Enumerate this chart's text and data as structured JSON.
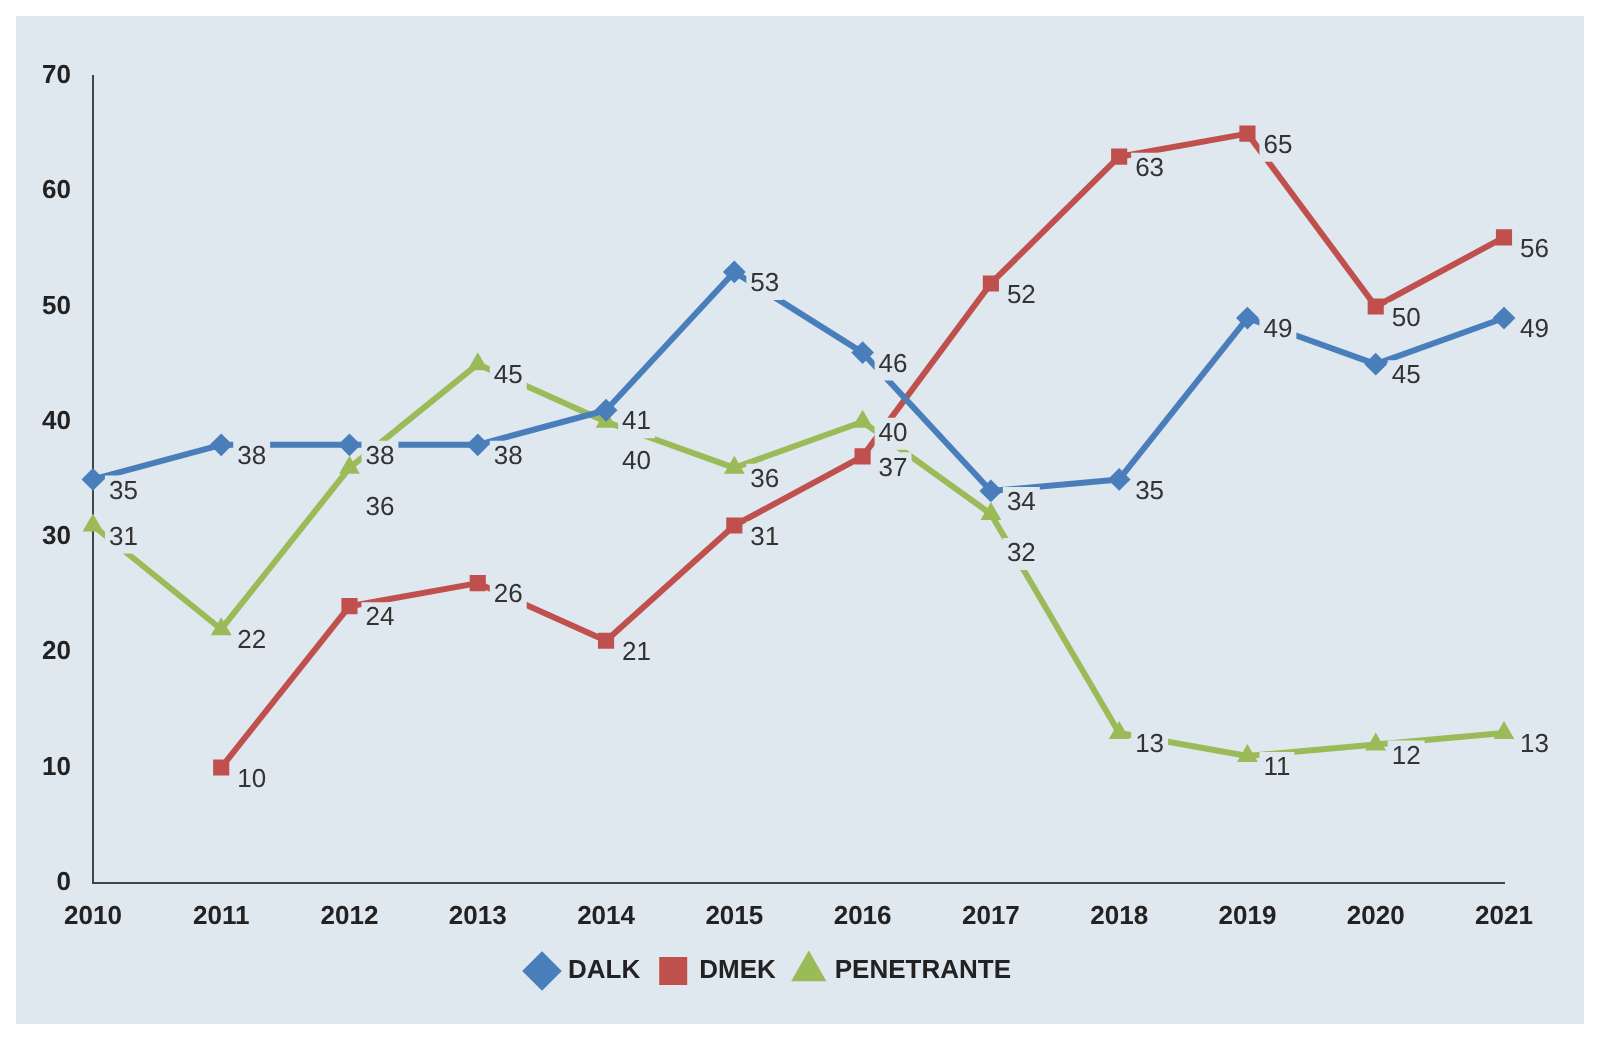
{
  "chart_data": {
    "type": "line",
    "categories": [
      "2010",
      "2011",
      "2012",
      "2013",
      "2014",
      "2015",
      "2016",
      "2017",
      "2018",
      "2019",
      "2020",
      "2021"
    ],
    "series": [
      {
        "name": "DALK",
        "color": "#4a7ebb",
        "marker": "diamond",
        "values": [
          35,
          38,
          38,
          38,
          41,
          53,
          46,
          34,
          35,
          49,
          45,
          49
        ]
      },
      {
        "name": "DMEK",
        "color": "#c0504d",
        "marker": "square",
        "values": [
          null,
          10,
          24,
          26,
          21,
          31,
          37,
          52,
          63,
          65,
          50,
          56
        ]
      },
      {
        "name": "PENETRANTE",
        "color": "#9bbb59",
        "marker": "triangle",
        "values": [
          31,
          22,
          36,
          45,
          40,
          36,
          40,
          32,
          13,
          11,
          12,
          13
        ]
      }
    ],
    "ylim": [
      0,
      70
    ],
    "yticks": [
      0,
      10,
      20,
      30,
      40,
      50,
      60,
      70
    ],
    "grid": false,
    "legend": "bottom",
    "data_labels": true,
    "line_style": "solid"
  }
}
